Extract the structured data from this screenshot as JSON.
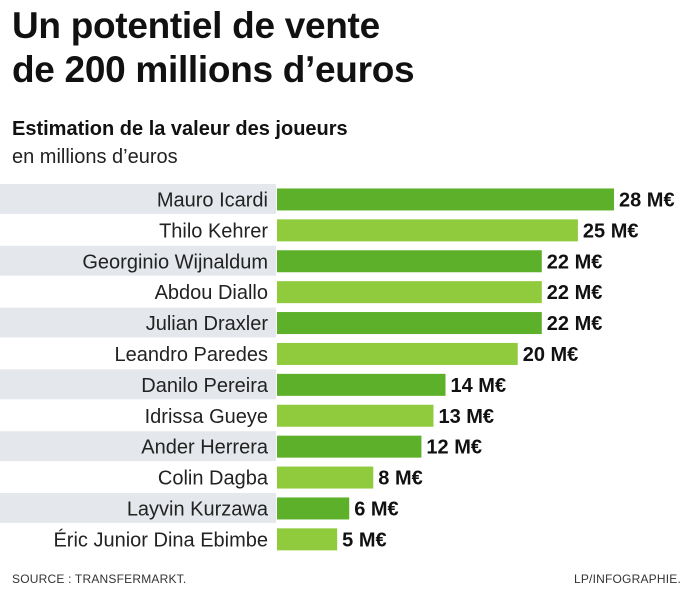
{
  "title_line1": "Un potentiel de vente",
  "title_line2": "de 200 millions d’euros",
  "subtitle": "Estimation de la valeur des joueurs",
  "unit_label": "en millions d’euros",
  "source": "SOURCE : TRANSFERMARKT.",
  "credit": "LP/INFOGRAPHIE.",
  "colors": {
    "bar_dark": "#5db02a",
    "bar_light": "#8fcb3c",
    "stripe": "#e4e7eb"
  },
  "chart_data": {
    "type": "bar",
    "orientation": "horizontal",
    "title": "Estimation de la valeur des joueurs",
    "subtitle": "en millions d’euros",
    "value_suffix": " M€",
    "categories": [
      "Mauro Icardi",
      "Thilo Kehrer",
      "Georginio Wijnaldum",
      "Abdou Diallo",
      "Julian Draxler",
      "Leandro Paredes",
      "Danilo Pereira",
      "Idrissa Gueye",
      "Ander Herrera",
      "Colin Dagba",
      "Layvin Kurzawa",
      "Éric Junior Dina Ebimbe"
    ],
    "values": [
      28,
      25,
      22,
      22,
      22,
      20,
      14,
      13,
      12,
      8,
      6,
      5
    ],
    "value_labels": [
      "28 M€",
      "25 M€",
      "22 M€",
      "22 M€",
      "22 M€",
      "20 M€",
      "14 M€",
      "13 M€",
      "12 M€",
      "8 M€",
      "6 M€",
      "5 M€"
    ],
    "xlim": [
      0,
      28
    ],
    "grid": false,
    "legend": false
  }
}
